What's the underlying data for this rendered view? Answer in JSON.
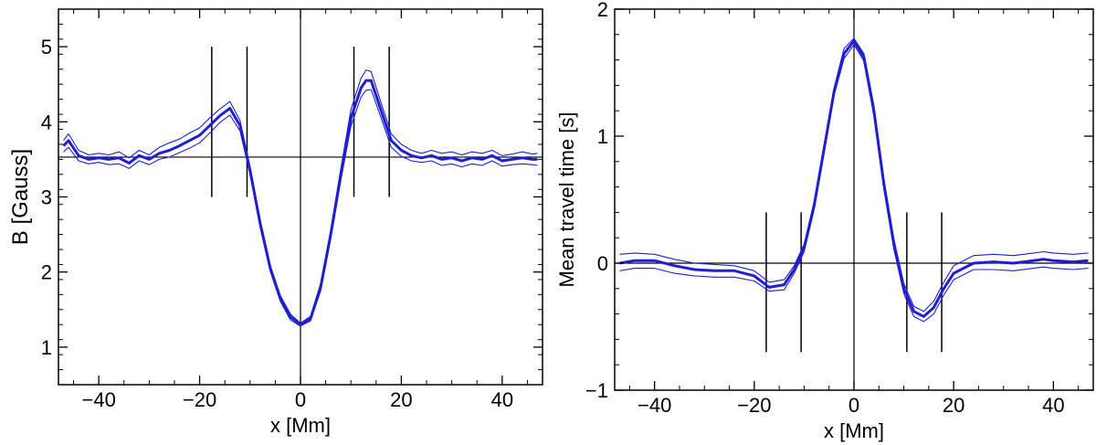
{
  "chart_data": [
    {
      "type": "line",
      "title": "",
      "xlabel": "x [Mm]",
      "ylabel": "B [Gauss]",
      "xlim": [
        -48,
        48
      ],
      "ylim": [
        0.5,
        5.5
      ],
      "xticks": [
        -40,
        -20,
        0,
        20,
        40
      ],
      "xtick_labels": [
        "−40",
        "−20",
        "0",
        "20",
        "40"
      ],
      "yticks": [
        1,
        2,
        3,
        4,
        5
      ],
      "ytick_labels": [
        "1",
        "2",
        "3",
        "4",
        "5"
      ],
      "grid": false,
      "line_color": "#1f1fd0",
      "reference_lines": {
        "horizontal_y": 3.53,
        "vertical_x": 0
      },
      "marker_lines": [
        {
          "x": -17.6,
          "y_range": [
            3.0,
            5.0
          ]
        },
        {
          "x": -10.6,
          "y_range": [
            3.0,
            5.0
          ]
        },
        {
          "x": 10.6,
          "y_range": [
            3.0,
            5.0
          ]
        },
        {
          "x": 17.6,
          "y_range": [
            3.0,
            5.0
          ]
        }
      ],
      "x": [
        -47,
        -46,
        -44,
        -42,
        -40,
        -38,
        -36,
        -34,
        -32,
        -30,
        -28,
        -26,
        -24,
        -22,
        -20,
        -18,
        -16,
        -14,
        -12,
        -10,
        -8,
        -6,
        -4,
        -2,
        0,
        2,
        4,
        6,
        8,
        10,
        12,
        13,
        14,
        16,
        18,
        20,
        22,
        24,
        26,
        28,
        30,
        32,
        34,
        36,
        38,
        40,
        42,
        44,
        46,
        47
      ],
      "series": [
        {
          "role": "mean",
          "values": [
            3.68,
            3.75,
            3.55,
            3.5,
            3.52,
            3.5,
            3.52,
            3.45,
            3.55,
            3.5,
            3.58,
            3.62,
            3.68,
            3.75,
            3.82,
            3.95,
            4.08,
            4.18,
            3.95,
            3.35,
            2.65,
            2.05,
            1.65,
            1.4,
            1.3,
            1.38,
            1.8,
            2.5,
            3.3,
            4.05,
            4.45,
            4.55,
            4.55,
            4.15,
            3.75,
            3.62,
            3.55,
            3.52,
            3.55,
            3.5,
            3.52,
            3.48,
            3.52,
            3.5,
            3.55,
            3.48,
            3.5,
            3.52,
            3.5,
            3.5
          ]
        },
        {
          "role": "upper",
          "values": [
            3.75,
            3.84,
            3.62,
            3.56,
            3.58,
            3.56,
            3.6,
            3.52,
            3.62,
            3.56,
            3.66,
            3.72,
            3.77,
            3.85,
            3.92,
            4.05,
            4.17,
            4.27,
            4.02,
            3.4,
            2.7,
            2.09,
            1.69,
            1.44,
            1.32,
            1.41,
            1.85,
            2.56,
            3.38,
            4.16,
            4.58,
            4.69,
            4.67,
            4.25,
            3.84,
            3.7,
            3.62,
            3.58,
            3.62,
            3.58,
            3.6,
            3.56,
            3.6,
            3.58,
            3.62,
            3.55,
            3.57,
            3.6,
            3.57,
            3.58
          ]
        },
        {
          "role": "lower",
          "values": [
            3.6,
            3.66,
            3.48,
            3.44,
            3.46,
            3.43,
            3.44,
            3.38,
            3.48,
            3.43,
            3.5,
            3.53,
            3.59,
            3.65,
            3.72,
            3.85,
            3.99,
            4.09,
            3.88,
            3.3,
            2.6,
            2.01,
            1.61,
            1.36,
            1.28,
            1.35,
            1.75,
            2.44,
            3.22,
            3.94,
            4.33,
            4.42,
            4.43,
            4.05,
            3.66,
            3.54,
            3.48,
            3.46,
            3.48,
            3.42,
            3.44,
            3.4,
            3.44,
            3.42,
            3.48,
            3.41,
            3.43,
            3.44,
            3.43,
            3.42
          ]
        }
      ]
    },
    {
      "type": "line",
      "title": "",
      "xlabel": "x [Mm]",
      "ylabel": "Mean travel time [s]",
      "xlim": [
        -48,
        48
      ],
      "ylim": [
        -1,
        2
      ],
      "xticks": [
        -40,
        -20,
        0,
        20,
        40
      ],
      "xtick_labels": [
        "−40",
        "−20",
        "0",
        "20",
        "40"
      ],
      "yticks": [
        -1,
        0,
        1,
        2
      ],
      "ytick_labels": [
        "−1",
        "0",
        "1",
        "2"
      ],
      "grid": false,
      "line_color": "#1f1fd0",
      "reference_lines": {
        "horizontal_y": 0,
        "vertical_x": 0
      },
      "marker_lines": [
        {
          "x": -17.6,
          "y_range": [
            -0.7,
            0.4
          ]
        },
        {
          "x": -10.6,
          "y_range": [
            -0.7,
            0.4
          ]
        },
        {
          "x": 10.6,
          "y_range": [
            -0.7,
            0.4
          ]
        },
        {
          "x": 17.6,
          "y_range": [
            -0.7,
            0.4
          ]
        }
      ],
      "x": [
        -47,
        -44,
        -40,
        -36,
        -32,
        -28,
        -24,
        -20,
        -17,
        -14,
        -12,
        -10,
        -8,
        -6,
        -4,
        -2,
        0,
        2,
        4,
        6,
        8,
        10,
        12,
        14,
        16,
        18,
        20,
        24,
        28,
        32,
        36,
        38,
        40,
        44,
        47
      ],
      "series": [
        {
          "role": "mean",
          "values": [
            0.0,
            0.02,
            0.02,
            -0.02,
            -0.05,
            -0.06,
            -0.06,
            -0.1,
            -0.19,
            -0.17,
            -0.05,
            0.12,
            0.45,
            0.9,
            1.35,
            1.65,
            1.75,
            1.62,
            1.2,
            0.62,
            0.15,
            -0.2,
            -0.38,
            -0.42,
            -0.35,
            -0.2,
            -0.08,
            0.0,
            0.01,
            0.0,
            0.02,
            0.03,
            0.02,
            0.01,
            0.02
          ]
        },
        {
          "role": "upper",
          "values": [
            0.07,
            0.08,
            0.07,
            0.03,
            0.0,
            -0.01,
            -0.02,
            -0.06,
            -0.15,
            -0.13,
            -0.02,
            0.15,
            0.48,
            0.93,
            1.38,
            1.69,
            1.77,
            1.65,
            1.24,
            0.66,
            0.19,
            -0.16,
            -0.34,
            -0.38,
            -0.3,
            -0.15,
            -0.02,
            0.06,
            0.07,
            0.06,
            0.08,
            0.09,
            0.08,
            0.07,
            0.08
          ]
        },
        {
          "role": "lower",
          "values": [
            -0.06,
            -0.04,
            -0.04,
            -0.08,
            -0.1,
            -0.11,
            -0.11,
            -0.14,
            -0.22,
            -0.21,
            -0.08,
            0.09,
            0.42,
            0.87,
            1.32,
            1.61,
            1.72,
            1.59,
            1.16,
            0.58,
            0.11,
            -0.24,
            -0.42,
            -0.46,
            -0.4,
            -0.25,
            -0.13,
            -0.05,
            -0.05,
            -0.06,
            -0.04,
            -0.03,
            -0.04,
            -0.05,
            -0.04
          ]
        }
      ]
    }
  ]
}
